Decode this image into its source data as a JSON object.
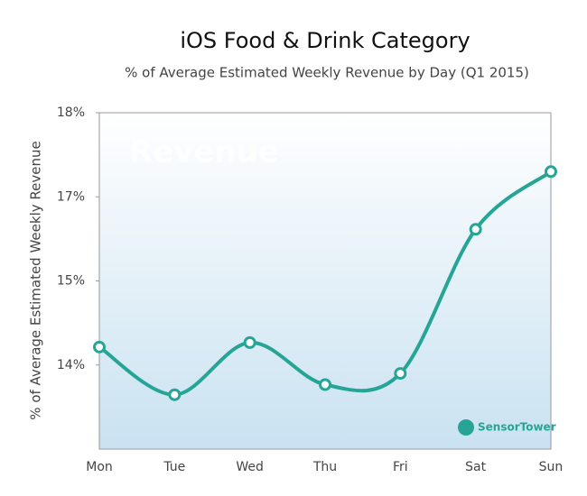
{
  "chart_data": {
    "type": "line",
    "title": "iOS Food & Drink Category",
    "subtitle": "% of Average Estimated Weekly Revenue by Day (Q1 2015)",
    "y_label": "% of Average Estimated Weekly Revenue",
    "watermark": "Revenue",
    "logo": "SensorTower",
    "categories": [
      "Mon",
      "Tue",
      "Wed",
      "Thu",
      "Fri",
      "Sat",
      "Sun"
    ],
    "series": [
      {
        "name": "Revenue",
        "color": "#26a596",
        "values": [
          13.82,
          12.97,
          13.9,
          13.15,
          13.35,
          15.92,
          16.95
        ]
      }
    ],
    "ylim": [
      12,
      18
    ],
    "yticks": [
      {
        "value": 18,
        "label": "18%"
      },
      {
        "value": 16.5,
        "label": "17%"
      },
      {
        "value": 15,
        "label": "15%"
      },
      {
        "value": 13.5,
        "label": "14%"
      }
    ]
  }
}
